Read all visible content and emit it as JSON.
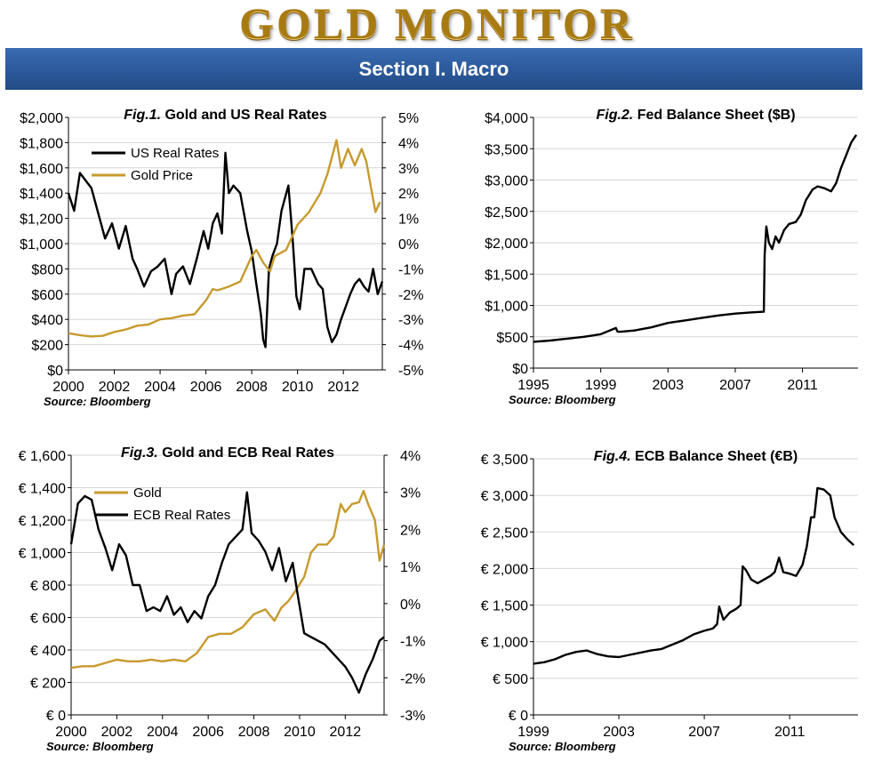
{
  "header": {
    "brand": "GOLD MONITOR",
    "section_title": "Section I. Macro"
  },
  "colors": {
    "gold": "#c79a2d",
    "black": "#000000",
    "banner": "#2c5a9c"
  },
  "chart_data": [
    {
      "type": "line",
      "fig_prefix": "Fig.1.",
      "title": "Gold and US Real Rates",
      "source": "Source: Bloomberg",
      "xlim": [
        2000,
        2013.7
      ],
      "x_ticks": [
        "2000",
        "2002",
        "2004",
        "2006",
        "2008",
        "2010",
        "2012"
      ],
      "ylim_left": [
        0,
        2000
      ],
      "y_ticks_left": [
        "$2,000",
        "$1,800",
        "$1,600",
        "$1,400",
        "$1,200",
        "$1,000",
        "$800",
        "$600",
        "$400",
        "$200",
        "$0"
      ],
      "ylim_right": [
        -5,
        5
      ],
      "y_ticks_right": [
        "5%",
        "4%",
        "3%",
        "2%",
        "1%",
        "0%",
        "-1%",
        "-2%",
        "-3%",
        "-4%",
        "-5%"
      ],
      "legend_position": "top-left",
      "series": [
        {
          "name": "US Real Rates",
          "axis": "right",
          "color": "#000000",
          "x": [
            2000,
            2000.25,
            2000.5,
            2000.75,
            2001,
            2001.3,
            2001.6,
            2001.9,
            2002.2,
            2002.5,
            2002.8,
            2003.0,
            2003.3,
            2003.6,
            2003.9,
            2004.2,
            2004.5,
            2004.7,
            2005.0,
            2005.3,
            2005.6,
            2005.9,
            2006.1,
            2006.3,
            2006.5,
            2006.7,
            2006.85,
            2007.0,
            2007.2,
            2007.5,
            2007.8,
            2008.0,
            2008.2,
            2008.4,
            2008.5,
            2008.6,
            2008.75,
            2008.9,
            2009.1,
            2009.3,
            2009.6,
            2009.8,
            2009.95,
            2010.1,
            2010.3,
            2010.6,
            2010.9,
            2011.1,
            2011.3,
            2011.5,
            2011.7,
            2011.9,
            2012.1,
            2012.3,
            2012.5,
            2012.7,
            2012.9,
            2013.1,
            2013.3,
            2013.5,
            2013.7
          ],
          "y": [
            2.0,
            1.3,
            2.8,
            2.5,
            2.2,
            1.2,
            0.2,
            0.8,
            -0.2,
            0.7,
            -0.6,
            -1.0,
            -1.7,
            -1.1,
            -0.9,
            -0.6,
            -2.0,
            -1.2,
            -0.9,
            -1.6,
            -0.6,
            0.5,
            -0.2,
            0.8,
            1.2,
            0.4,
            3.6,
            2.0,
            2.3,
            2.0,
            0.5,
            -0.3,
            -1.6,
            -2.8,
            -3.8,
            -4.1,
            -1.0,
            -0.5,
            0.0,
            1.3,
            2.3,
            0.0,
            -2.1,
            -2.6,
            -1.0,
            -1.0,
            -1.6,
            -1.8,
            -3.3,
            -3.9,
            -3.6,
            -3.0,
            -2.5,
            -2.0,
            -1.6,
            -1.4,
            -1.7,
            -1.9,
            -1.0,
            -2.0,
            -1.5
          ]
        },
        {
          "name": "Gold Price",
          "axis": "left",
          "color": "#c79a2d",
          "x": [
            2000,
            2000.5,
            2001,
            2001.5,
            2002,
            2002.5,
            2003,
            2003.5,
            2004,
            2004.5,
            2005,
            2005.5,
            2006,
            2006.3,
            2006.5,
            2007,
            2007.5,
            2008,
            2008.2,
            2008.5,
            2008.8,
            2009,
            2009.5,
            2010,
            2010.5,
            2011,
            2011.3,
            2011.7,
            2011.9,
            2012.2,
            2012.5,
            2012.8,
            2013.0,
            2013.2,
            2013.4,
            2013.6
          ],
          "y": [
            290,
            275,
            265,
            270,
            300,
            320,
            350,
            360,
            400,
            410,
            430,
            440,
            550,
            640,
            630,
            660,
            700,
            900,
            950,
            850,
            780,
            900,
            950,
            1150,
            1250,
            1400,
            1550,
            1820,
            1600,
            1750,
            1620,
            1750,
            1650,
            1450,
            1250,
            1330
          ]
        }
      ]
    },
    {
      "type": "line",
      "fig_prefix": "Fig.2.",
      "title": "Fed Balance Sheet ($B)",
      "source": "Source: Bloomberg",
      "xlim": [
        1995,
        2014.3
      ],
      "x_ticks": [
        "1995",
        "1999",
        "2003",
        "2007",
        "2011"
      ],
      "ylim": [
        0,
        4000
      ],
      "y_ticks": [
        "$4,000",
        "$3,500",
        "$3,000",
        "$2,500",
        "$2,000",
        "$1,500",
        "$1,000",
        "$500",
        "$0"
      ],
      "series": [
        {
          "name": "",
          "color": "#000000",
          "x": [
            1995,
            1996,
            1997,
            1998,
            1999,
            1999.9,
            2000,
            2000.2,
            2001,
            2002,
            2003,
            2004,
            2005,
            2006,
            2007,
            2008,
            2008.7,
            2008.75,
            2008.85,
            2009.0,
            2009.2,
            2009.4,
            2009.6,
            2009.9,
            2010.2,
            2010.6,
            2010.9,
            2011.2,
            2011.6,
            2011.9,
            2012.3,
            2012.7,
            2013.0,
            2013.3,
            2013.6,
            2013.9,
            2014.2
          ],
          "y": [
            420,
            440,
            470,
            500,
            540,
            640,
            580,
            580,
            600,
            650,
            720,
            760,
            800,
            840,
            870,
            890,
            900,
            1800,
            2260,
            2000,
            1900,
            2100,
            2000,
            2200,
            2300,
            2330,
            2450,
            2680,
            2850,
            2900,
            2870,
            2820,
            2950,
            3200,
            3400,
            3600,
            3720
          ]
        }
      ]
    },
    {
      "type": "line",
      "fig_prefix": "Fig.3.",
      "title": "Gold and ECB Real Rates",
      "source": "Source: Bloomberg",
      "xlim": [
        2000,
        2013.7
      ],
      "x_ticks": [
        "2000",
        "2002",
        "2004",
        "2006",
        "2008",
        "2010",
        "2012"
      ],
      "ylim_left": [
        0,
        1600
      ],
      "y_ticks_left": [
        "€ 1,600",
        "€ 1,400",
        "€ 1,200",
        "€ 1,000",
        "€ 800",
        "€ 600",
        "€ 400",
        "€ 200",
        "€ 0"
      ],
      "ylim_right": [
        -3,
        4
      ],
      "y_ticks_right": [
        "4%",
        "3%",
        "2%",
        "1%",
        "0%",
        "-1%",
        "-2%",
        "-3%"
      ],
      "legend_position": "top-left",
      "series": [
        {
          "name": "Gold",
          "axis": "left",
          "color": "#c79a2d",
          "x": [
            2000,
            2000.5,
            2001,
            2001.5,
            2002,
            2002.5,
            2003,
            2003.5,
            2004,
            2004.5,
            2005,
            2005.5,
            2006,
            2006.5,
            2007,
            2007.5,
            2008,
            2008.5,
            2008.9,
            2009.2,
            2009.5,
            2009.8,
            2010.2,
            2010.5,
            2010.8,
            2011.2,
            2011.5,
            2011.8,
            2012.0,
            2012.3,
            2012.6,
            2012.8,
            2013.0,
            2013.3,
            2013.5,
            2013.7
          ],
          "y": [
            290,
            300,
            300,
            320,
            340,
            330,
            330,
            340,
            330,
            340,
            330,
            380,
            480,
            500,
            500,
            540,
            620,
            650,
            580,
            660,
            700,
            760,
            850,
            1000,
            1050,
            1050,
            1100,
            1300,
            1250,
            1300,
            1310,
            1380,
            1300,
            1200,
            950,
            1050
          ]
        },
        {
          "name": "ECB Real Rates",
          "axis": "right",
          "color": "#000000",
          "x": [
            2000,
            2000.3,
            2000.6,
            2000.9,
            2001.2,
            2001.5,
            2001.8,
            2002.1,
            2002.4,
            2002.7,
            2003.0,
            2003.3,
            2003.6,
            2003.9,
            2004.2,
            2004.5,
            2004.8,
            2005.1,
            2005.4,
            2005.7,
            2006.0,
            2006.3,
            2006.6,
            2006.9,
            2007.2,
            2007.5,
            2007.7,
            2007.9,
            2008.2,
            2008.5,
            2008.8,
            2009.1,
            2009.4,
            2009.7,
            2009.9,
            2010.2,
            2010.5,
            2010.8,
            2011.1,
            2011.4,
            2011.7,
            2012.0,
            2012.3,
            2012.6,
            2012.9,
            2013.2,
            2013.5,
            2013.7
          ],
          "y": [
            1.6,
            2.7,
            2.9,
            2.8,
            2.0,
            1.5,
            0.9,
            1.6,
            1.3,
            0.5,
            0.5,
            -0.2,
            -0.1,
            -0.2,
            0.2,
            -0.3,
            -0.1,
            -0.5,
            -0.2,
            -0.4,
            0.2,
            0.5,
            1.1,
            1.6,
            1.8,
            2.0,
            3.0,
            1.9,
            1.7,
            1.4,
            0.9,
            1.5,
            0.6,
            1.1,
            0.3,
            -0.8,
            -0.9,
            -1.0,
            -1.1,
            -1.3,
            -1.5,
            -1.7,
            -2.0,
            -2.4,
            -1.9,
            -1.5,
            -1.0,
            -0.9
          ]
        }
      ]
    },
    {
      "type": "line",
      "fig_prefix": "Fig.4.",
      "title": "ECB Balance Sheet (€B)",
      "source": "Source: Bloomberg",
      "xlim": [
        1999,
        2014.2
      ],
      "x_ticks": [
        "1999",
        "2003",
        "2007",
        "2011"
      ],
      "ylim": [
        0,
        3500
      ],
      "y_ticks": [
        "€ 3,500",
        "€ 3,000",
        "€ 2,500",
        "€ 2,000",
        "€ 1,500",
        "€ 1,000",
        "€ 500",
        "€ 0"
      ],
      "series": [
        {
          "name": "",
          "color": "#000000",
          "x": [
            1999,
            1999.5,
            2000,
            2000.5,
            2001,
            2001.5,
            2002,
            2002.5,
            2003,
            2003.5,
            2004,
            2004.5,
            2005,
            2005.5,
            2006,
            2006.5,
            2007,
            2007.4,
            2007.6,
            2007.7,
            2007.9,
            2008.2,
            2008.5,
            2008.7,
            2008.8,
            2008.95,
            2009.2,
            2009.5,
            2009.8,
            2010.1,
            2010.3,
            2010.5,
            2010.7,
            2011.0,
            2011.3,
            2011.6,
            2011.8,
            2012.0,
            2012.15,
            2012.3,
            2012.6,
            2012.9,
            2013.1,
            2013.4,
            2013.7,
            2014.0
          ],
          "y": [
            700,
            720,
            760,
            820,
            860,
            880,
            830,
            800,
            790,
            820,
            850,
            880,
            900,
            960,
            1020,
            1100,
            1150,
            1180,
            1240,
            1480,
            1300,
            1400,
            1450,
            1500,
            2030,
            1980,
            1850,
            1800,
            1850,
            1900,
            1950,
            2150,
            1950,
            1930,
            1900,
            2050,
            2300,
            2700,
            2700,
            3100,
            3080,
            3000,
            2700,
            2500,
            2400,
            2320
          ]
        }
      ]
    }
  ]
}
